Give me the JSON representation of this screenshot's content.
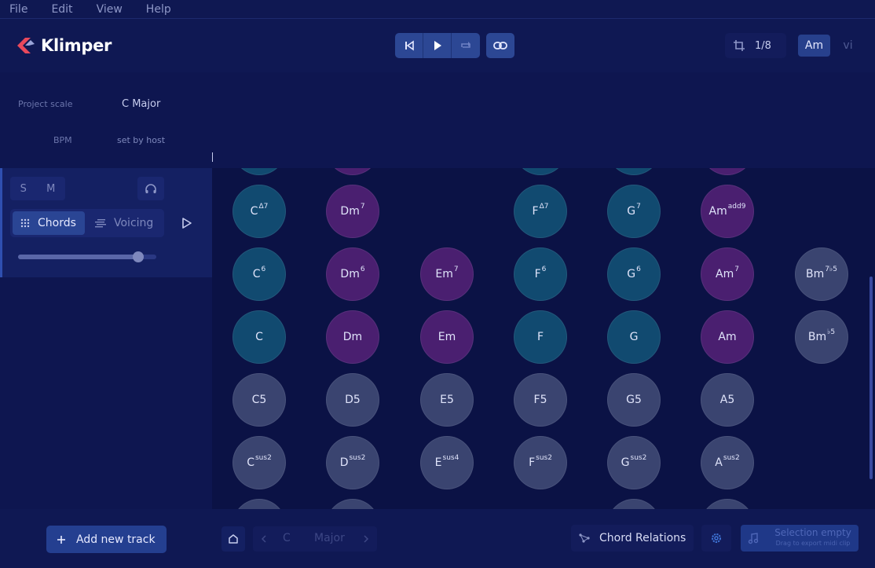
{
  "menu": [
    "File",
    "Edit",
    "View",
    "Help"
  ],
  "app": {
    "name": "Klimper"
  },
  "header": {
    "quantize": "1/8",
    "key_active": "Am",
    "key_inactive": "vi"
  },
  "project": {
    "scale_label": "Project scale",
    "scale_value": "C Major",
    "bpm_label": "BPM",
    "bpm_value": "set by host"
  },
  "track": {
    "solo": "S",
    "mute": "M",
    "mode_chords": "Chords",
    "mode_voicing": "Voicing",
    "volume": 0.87
  },
  "colors": {
    "teal": "#114a70",
    "purple": "#4a1f70",
    "gray": "#3a4470",
    "accent": "#2c4794"
  },
  "grid": {
    "rows": [
      [
        {
          "root": "C",
          "sup": "Δ7",
          "color": "teal"
        },
        {
          "root": "Dm",
          "sup": "7",
          "color": "purple"
        },
        null,
        {
          "root": "F",
          "sup": "Δ7",
          "color": "teal"
        },
        {
          "root": "G",
          "sup": "7",
          "color": "teal"
        },
        {
          "root": "Am",
          "sup": "add9",
          "color": "purple"
        },
        null
      ],
      [
        {
          "root": "C",
          "sup": "6",
          "color": "teal"
        },
        {
          "root": "Dm",
          "sup": "6",
          "color": "purple"
        },
        {
          "root": "Em",
          "sup": "7",
          "color": "purple"
        },
        {
          "root": "F",
          "sup": "6",
          "color": "teal"
        },
        {
          "root": "G",
          "sup": "6",
          "color": "teal"
        },
        {
          "root": "Am",
          "sup": "7",
          "color": "purple"
        },
        {
          "root": "Bm",
          "sup": "7♭5",
          "color": "gray"
        }
      ],
      [
        {
          "root": "C",
          "sup": "",
          "color": "teal"
        },
        {
          "root": "Dm",
          "sup": "",
          "color": "purple"
        },
        {
          "root": "Em",
          "sup": "",
          "color": "purple"
        },
        {
          "root": "F",
          "sup": "",
          "color": "teal"
        },
        {
          "root": "G",
          "sup": "",
          "color": "teal"
        },
        {
          "root": "Am",
          "sup": "",
          "color": "purple"
        },
        {
          "root": "Bm",
          "sup": "♭5",
          "color": "gray"
        }
      ],
      [
        {
          "root": "C5",
          "sup": "",
          "color": "gray"
        },
        {
          "root": "D5",
          "sup": "",
          "color": "gray"
        },
        {
          "root": "E5",
          "sup": "",
          "color": "gray"
        },
        {
          "root": "F5",
          "sup": "",
          "color": "gray"
        },
        {
          "root": "G5",
          "sup": "",
          "color": "gray"
        },
        {
          "root": "A5",
          "sup": "",
          "color": "gray"
        },
        null
      ],
      [
        {
          "root": "C",
          "sup": "sus2",
          "color": "gray"
        },
        {
          "root": "D",
          "sup": "sus2",
          "color": "gray"
        },
        {
          "root": "E",
          "sup": "sus4",
          "color": "gray"
        },
        {
          "root": "F",
          "sup": "sus2",
          "color": "gray"
        },
        {
          "root": "G",
          "sup": "sus2",
          "color": "gray"
        },
        {
          "root": "A",
          "sup": "sus2",
          "color": "gray"
        },
        null
      ]
    ],
    "partial_top": [
      "teal",
      "purple",
      null,
      "teal",
      "teal",
      "purple",
      null
    ],
    "partial_bottom": [
      "gray",
      "gray",
      null,
      null,
      "gray",
      "gray",
      null
    ]
  },
  "footer": {
    "add_track": "Add new track",
    "nav_root": "C",
    "nav_mode": "Major",
    "chord_relations": "Chord Relations",
    "export_title": "Selection empty",
    "export_subtitle": "Drag to export midi clip"
  }
}
